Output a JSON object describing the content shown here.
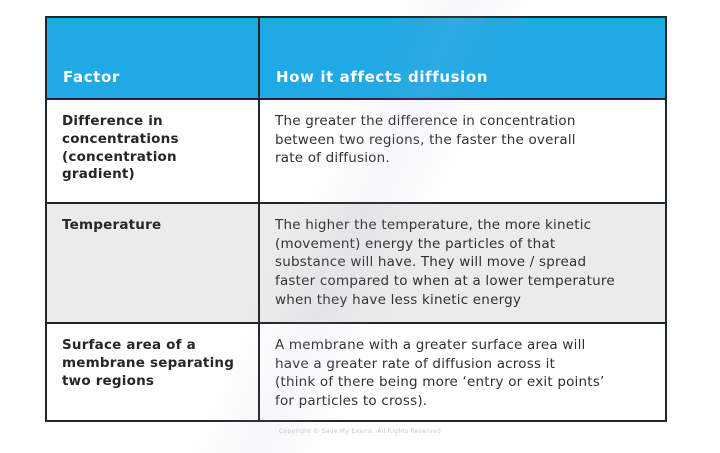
{
  "table": {
    "border_color": "#20262e",
    "header": {
      "bg": "#1fa9e5",
      "text_color": "#ffffff",
      "col1": "Factor",
      "col2": "How it affects diffusion"
    },
    "rows": [
      {
        "factor": "Difference in\nconcentrations\n(concentration\ngradient)",
        "effect": "The greater the difference in concentration\nbetween two regions, the faster the overall\nrate of diffusion.",
        "bg": "#ffffff"
      },
      {
        "factor": "Temperature",
        "effect": "The higher the temperature, the more kinetic\n(movement) energy the particles of that\nsubstance will have. They will move / spread\nfaster compared to when at a lower temperature\nwhen they have less kinetic energy",
        "bg": "#ebebeb"
      },
      {
        "factor": "Surface area of a\nmembrane separating\ntwo regions",
        "effect": "A membrane with a greater surface area will\nhave a greater rate of diffusion across it\n(think of there being more ‘entry or exit points’\nfor particles to cross).",
        "bg": "#ffffff"
      }
    ]
  },
  "footer": {
    "copyright": "Copyright © Save My Exams. All Rights Reserved"
  }
}
